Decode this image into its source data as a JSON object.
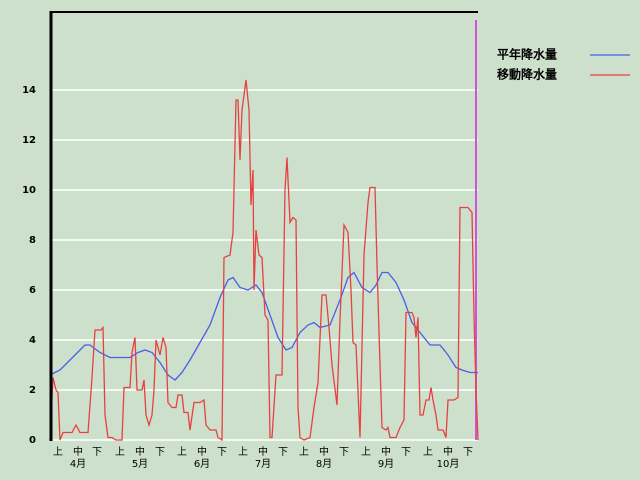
{
  "chart_data": {
    "type": "line",
    "xlim": [
      0,
      214
    ],
    "ylim": [
      0,
      17.12
    ],
    "yticks": [
      0,
      2,
      4,
      6,
      8,
      10,
      12,
      14
    ],
    "grid": true,
    "legend": "top-right",
    "xticks": [
      {
        "value": 4,
        "label": "上"
      },
      {
        "value": 14,
        "label": "中"
      },
      {
        "value": 23.5,
        "label": "下"
      },
      {
        "value": 35,
        "label": "上"
      },
      {
        "value": 45,
        "label": "中"
      },
      {
        "value": 55,
        "label": "下"
      },
      {
        "value": 66,
        "label": "上"
      },
      {
        "value": 76,
        "label": "中"
      },
      {
        "value": 86,
        "label": "下"
      },
      {
        "value": 96.5,
        "label": "上"
      },
      {
        "value": 106.5,
        "label": "中"
      },
      {
        "value": 116.5,
        "label": "下"
      },
      {
        "value": 127,
        "label": "上"
      },
      {
        "value": 137,
        "label": "中"
      },
      {
        "value": 147,
        "label": "下"
      },
      {
        "value": 158,
        "label": "上"
      },
      {
        "value": 168,
        "label": "中"
      },
      {
        "value": 178,
        "label": "下"
      },
      {
        "value": 189,
        "label": "上"
      },
      {
        "value": 199,
        "label": "中"
      },
      {
        "value": 209,
        "label": "下"
      }
    ],
    "x_groups": [
      {
        "value": 14,
        "label": "4月"
      },
      {
        "value": 45,
        "label": "5月"
      },
      {
        "value": 76,
        "label": "6月"
      },
      {
        "value": 106.5,
        "label": "7月"
      },
      {
        "value": 137,
        "label": "8月"
      },
      {
        "value": 168,
        "label": "9月"
      },
      {
        "value": 199,
        "label": "10月"
      }
    ],
    "series": [
      {
        "name": "平年降水量",
        "color": "#4a5ee8",
        "x": [
          0,
          5,
          10,
          15,
          17.5,
          20,
          25,
          30,
          35,
          40,
          44,
          47.5,
          51,
          55,
          59,
          62.5,
          66,
          70,
          75,
          80,
          85,
          89,
          91.5,
          95,
          99,
          103,
          106,
          110,
          114,
          118,
          121,
          125,
          129,
          132,
          135,
          140,
          145,
          149,
          152,
          156,
          160,
          163,
          166,
          169,
          173,
          177,
          181,
          185,
          190,
          195,
          199,
          203,
          206,
          210,
          214
        ],
        "values": [
          2.6,
          2.8,
          3.2,
          3.6,
          3.8,
          3.8,
          3.5,
          3.3,
          3.3,
          3.3,
          3.5,
          3.6,
          3.5,
          3.1,
          2.6,
          2.4,
          2.7,
          3.2,
          3.9,
          4.6,
          5.7,
          6.4,
          6.5,
          6.1,
          6.0,
          6.2,
          5.9,
          5.0,
          4.1,
          3.6,
          3.7,
          4.3,
          4.6,
          4.7,
          4.5,
          4.6,
          5.6,
          6.5,
          6.7,
          6.1,
          5.9,
          6.2,
          6.7,
          6.7,
          6.3,
          5.6,
          4.7,
          4.3,
          3.8,
          3.8,
          3.4,
          2.9,
          2.8,
          2.7,
          2.7
        ]
      },
      {
        "name": "移動降水量",
        "color": "#e84040",
        "x": [
          0,
          1.5,
          3,
          4,
          5,
          6.5,
          11,
          13,
          15,
          19,
          21,
          22.5,
          25.5,
          26.5,
          27.5,
          29,
          31,
          33,
          36,
          37,
          40,
          41,
          42.5,
          43.5,
          46,
          47,
          48,
          49.5,
          51,
          52,
          53,
          55,
          56.5,
          58,
          59,
          61,
          63,
          64,
          66,
          67,
          69,
          70,
          72,
          75,
          77,
          78,
          80,
          83,
          84,
          86,
          87,
          90,
          91.5,
          93,
          94,
          95,
          96,
          98,
          99.5,
          100.5,
          101.5,
          102,
          103,
          104.5,
          106,
          107.5,
          109,
          110,
          111,
          113,
          116,
          117.5,
          118.5,
          120,
          121.5,
          123,
          124,
          125,
          127,
          130,
          132,
          134,
          136,
          138,
          139.5,
          141,
          143.5,
          145,
          147,
          149,
          150.5,
          151.5,
          153,
          155,
          157,
          159,
          160,
          162.5,
          163.5,
          165,
          166,
          168,
          169,
          170,
          173,
          175,
          177,
          178,
          181,
          182,
          183,
          184,
          185,
          186.5,
          188,
          189.5,
          190.5,
          191.5,
          193,
          194,
          196.5,
          198,
          199,
          202,
          204,
          205,
          209,
          211,
          212,
          213,
          214
        ],
        "values": [
          0,
          2.5,
          2.0,
          1.9,
          0,
          0.3,
          0.3,
          0.6,
          0.3,
          0.3,
          2.5,
          4.4,
          4.4,
          4.5,
          1.0,
          0.1,
          0.1,
          0,
          0,
          2.1,
          2.1,
          3.5,
          4.1,
          2.0,
          2.0,
          2.4,
          1.0,
          0.6,
          1.0,
          2.0,
          4.0,
          3.4,
          4.1,
          3.7,
          1.5,
          1.3,
          1.3,
          1.8,
          1.8,
          1.1,
          1.1,
          0.4,
          1.5,
          1.5,
          1.6,
          0.6,
          0.4,
          0.4,
          0.1,
          0,
          7.3,
          7.4,
          8.3,
          13.6,
          13.6,
          11.2,
          13.2,
          14.4,
          13.2,
          9.4,
          10.8,
          6.0,
          8.4,
          7.4,
          7.3,
          5.0,
          4.8,
          0.1,
          0.1,
          2.6,
          2.6,
          10.0,
          11.3,
          8.7,
          8.9,
          8.8,
          1.3,
          0.1,
          0,
          0.1,
          1.3,
          2.3,
          5.8,
          5.8,
          4.5,
          3.0,
          1.4,
          4.8,
          8.6,
          8.3,
          6.0,
          3.9,
          3.8,
          0.1,
          7.4,
          9.5,
          10.1,
          10.1,
          7.0,
          3.0,
          0.5,
          0.4,
          0.5,
          0.1,
          0.1,
          0.5,
          0.8,
          5.1,
          5.1,
          4.9,
          4.1,
          4.9,
          1.0,
          1.0,
          1.6,
          1.6,
          2.1,
          1.6,
          1.0,
          0.4,
          0.4,
          0.1,
          1.6,
          1.6,
          1.7,
          9.3,
          9.3,
          9.1,
          5.0,
          2.0,
          0
        ]
      }
    ]
  }
}
